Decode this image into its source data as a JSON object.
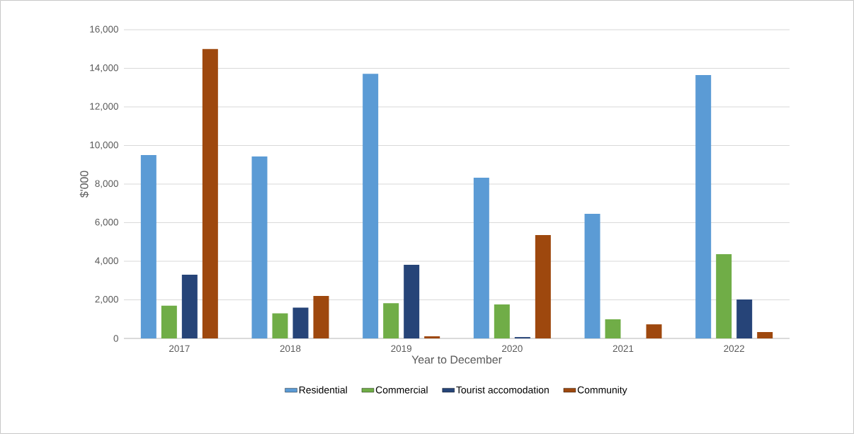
{
  "chart_data": {
    "type": "bar",
    "xlabel": "Year to December",
    "ylabel": "$'000",
    "categories": [
      "2017",
      "2018",
      "2019",
      "2020",
      "2021",
      "2022"
    ],
    "series": [
      {
        "name": "Residential",
        "color": "#5b9bd5",
        "values": [
          9500,
          9430,
          13720,
          8330,
          6460,
          13650
        ]
      },
      {
        "name": "Commercial",
        "color": "#70ad47",
        "values": [
          1700,
          1300,
          1830,
          1760,
          990,
          4370
        ]
      },
      {
        "name": "Tourist accomodation",
        "color": "#264478",
        "values": [
          3300,
          1600,
          3820,
          70,
          0,
          2020
        ]
      },
      {
        "name": "Community",
        "color": "#9e480e",
        "values": [
          15000,
          2200,
          110,
          5360,
          730,
          330
        ]
      }
    ],
    "ylim": [
      0,
      16000
    ],
    "yticks": [
      0,
      {
        "value": 2000,
        "label": "2,000"
      },
      {
        "value": 4000,
        "label": "4,000"
      },
      {
        "value": 6000,
        "label": "6,000"
      },
      {
        "value": 8000,
        "label": "8,000"
      },
      {
        "value": 10000,
        "label": "10,000"
      },
      {
        "value": 12000,
        "label": "12,000"
      },
      {
        "value": 14000,
        "label": "14,000"
      },
      {
        "value": 16000,
        "label": "16,000"
      }
    ],
    "grid": "y",
    "legend": "bottom"
  }
}
